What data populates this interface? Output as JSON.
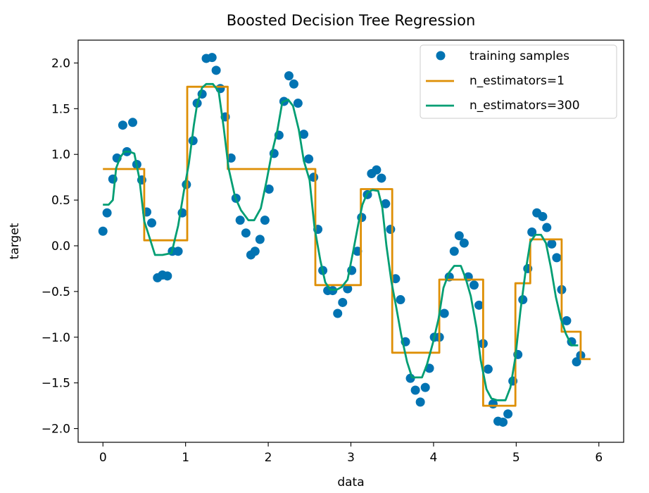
{
  "chart_data": {
    "type": "scatter",
    "title": "Boosted Decision Tree Regression",
    "xlabel": "data",
    "ylabel": "target",
    "xlim": [
      -0.3,
      6.3
    ],
    "ylim": [
      -2.15,
      2.25
    ],
    "xticks": [
      0,
      1,
      2,
      3,
      4,
      5,
      6
    ],
    "xtick_labels": [
      "0",
      "1",
      "2",
      "3",
      "4",
      "5",
      "6"
    ],
    "yticks": [
      -2.0,
      -1.5,
      -1.0,
      -0.5,
      0.0,
      0.5,
      1.0,
      1.5,
      2.0
    ],
    "ytick_labels": [
      "−2.0",
      "−1.5",
      "−1.0",
      "−0.5",
      "0.0",
      "0.5",
      "1.0",
      "1.5",
      "2.0"
    ],
    "grid": false,
    "legend_position": "top-right",
    "colors": {
      "samples": "#0173b2",
      "est1": "#de8f05",
      "est300": "#029e73"
    },
    "series": [
      {
        "name": "training samples",
        "kind": "scatter",
        "points": [
          [
            0.0,
            0.16
          ],
          [
            0.05,
            0.36
          ],
          [
            0.12,
            0.73
          ],
          [
            0.17,
            0.96
          ],
          [
            0.24,
            1.32
          ],
          [
            0.29,
            1.03
          ],
          [
            0.36,
            1.35
          ],
          [
            0.41,
            0.89
          ],
          [
            0.47,
            0.72
          ],
          [
            0.53,
            0.37
          ],
          [
            0.59,
            0.25
          ],
          [
            0.66,
            -0.35
          ],
          [
            0.72,
            -0.32
          ],
          [
            0.78,
            -0.33
          ],
          [
            0.84,
            -0.06
          ],
          [
            0.91,
            -0.06
          ],
          [
            0.96,
            0.36
          ],
          [
            1.01,
            0.67
          ],
          [
            1.09,
            1.15
          ],
          [
            1.14,
            1.56
          ],
          [
            1.2,
            1.66
          ],
          [
            1.25,
            2.05
          ],
          [
            1.32,
            2.06
          ],
          [
            1.37,
            1.92
          ],
          [
            1.42,
            1.72
          ],
          [
            1.48,
            1.41
          ],
          [
            1.55,
            0.96
          ],
          [
            1.61,
            0.52
          ],
          [
            1.66,
            0.28
          ],
          [
            1.73,
            0.14
          ],
          [
            1.79,
            -0.1
          ],
          [
            1.84,
            -0.06
          ],
          [
            1.9,
            0.07
          ],
          [
            1.96,
            0.28
          ],
          [
            2.01,
            0.62
          ],
          [
            2.07,
            1.01
          ],
          [
            2.13,
            1.21
          ],
          [
            2.19,
            1.58
          ],
          [
            2.25,
            1.86
          ],
          [
            2.31,
            1.77
          ],
          [
            2.36,
            1.56
          ],
          [
            2.43,
            1.22
          ],
          [
            2.49,
            0.95
          ],
          [
            2.55,
            0.75
          ],
          [
            2.6,
            0.18
          ],
          [
            2.66,
            -0.27
          ],
          [
            2.72,
            -0.49
          ],
          [
            2.78,
            -0.49
          ],
          [
            2.84,
            -0.74
          ],
          [
            2.9,
            -0.62
          ],
          [
            2.96,
            -0.47
          ],
          [
            3.01,
            -0.27
          ],
          [
            3.08,
            -0.06
          ],
          [
            3.13,
            0.31
          ],
          [
            3.2,
            0.56
          ],
          [
            3.25,
            0.79
          ],
          [
            3.31,
            0.83
          ],
          [
            3.37,
            0.74
          ],
          [
            3.42,
            0.46
          ],
          [
            3.48,
            0.18
          ],
          [
            3.54,
            -0.36
          ],
          [
            3.6,
            -0.59
          ],
          [
            3.66,
            -1.05
          ],
          [
            3.72,
            -1.45
          ],
          [
            3.78,
            -1.58
          ],
          [
            3.84,
            -1.71
          ],
          [
            3.9,
            -1.55
          ],
          [
            3.95,
            -1.34
          ],
          [
            4.01,
            -1.0
          ],
          [
            4.07,
            -1.0
          ],
          [
            4.13,
            -0.74
          ],
          [
            4.19,
            -0.34
          ],
          [
            4.25,
            -0.06
          ],
          [
            4.31,
            0.11
          ],
          [
            4.37,
            0.03
          ],
          [
            4.42,
            -0.34
          ],
          [
            4.49,
            -0.43
          ],
          [
            4.55,
            -0.65
          ],
          [
            4.6,
            -1.07
          ],
          [
            4.66,
            -1.35
          ],
          [
            4.72,
            -1.73
          ],
          [
            4.78,
            -1.92
          ],
          [
            4.84,
            -1.93
          ],
          [
            4.9,
            -1.84
          ],
          [
            4.96,
            -1.48
          ],
          [
            5.02,
            -1.19
          ],
          [
            5.08,
            -0.59
          ],
          [
            5.14,
            -0.25
          ],
          [
            5.19,
            0.15
          ],
          [
            5.25,
            0.36
          ],
          [
            5.32,
            0.32
          ],
          [
            5.37,
            0.2
          ],
          [
            5.43,
            0.02
          ],
          [
            5.49,
            -0.13
          ],
          [
            5.55,
            -0.48
          ],
          [
            5.61,
            -0.82
          ],
          [
            5.67,
            -1.05
          ],
          [
            5.73,
            -1.27
          ],
          [
            5.78,
            -1.2
          ]
        ]
      },
      {
        "name": "n_estimators=1",
        "kind": "step",
        "points": [
          [
            0.0,
            0.84
          ],
          [
            0.5,
            0.84
          ],
          [
            0.5,
            0.06
          ],
          [
            1.02,
            0.06
          ],
          [
            1.02,
            1.74
          ],
          [
            1.51,
            1.74
          ],
          [
            1.51,
            0.84
          ],
          [
            2.57,
            0.84
          ],
          [
            2.57,
            -0.43
          ],
          [
            3.12,
            -0.43
          ],
          [
            3.12,
            0.62
          ],
          [
            3.5,
            0.62
          ],
          [
            3.5,
            -1.17
          ],
          [
            4.07,
            -1.17
          ],
          [
            4.07,
            -0.37
          ],
          [
            4.6,
            -0.37
          ],
          [
            4.6,
            -1.75
          ],
          [
            4.99,
            -1.75
          ],
          [
            4.99,
            -0.41
          ],
          [
            5.17,
            -0.41
          ],
          [
            5.17,
            0.07
          ],
          [
            5.55,
            0.07
          ],
          [
            5.55,
            -0.94
          ],
          [
            5.78,
            -0.94
          ],
          [
            5.78,
            -1.24
          ],
          [
            5.9,
            -1.24
          ]
        ]
      },
      {
        "name": "n_estimators=300",
        "kind": "line",
        "points": [
          [
            0.0,
            0.45
          ],
          [
            0.07,
            0.45
          ],
          [
            0.12,
            0.5
          ],
          [
            0.16,
            0.85
          ],
          [
            0.21,
            0.97
          ],
          [
            0.26,
            1.03
          ],
          [
            0.32,
            1.03
          ],
          [
            0.38,
            1.01
          ],
          [
            0.44,
            0.74
          ],
          [
            0.5,
            0.27
          ],
          [
            0.56,
            0.1
          ],
          [
            0.63,
            -0.1
          ],
          [
            0.72,
            -0.1
          ],
          [
            0.83,
            -0.08
          ],
          [
            0.91,
            0.22
          ],
          [
            0.98,
            0.6
          ],
          [
            1.04,
            0.9
          ],
          [
            1.1,
            1.32
          ],
          [
            1.14,
            1.55
          ],
          [
            1.2,
            1.73
          ],
          [
            1.25,
            1.77
          ],
          [
            1.33,
            1.77
          ],
          [
            1.4,
            1.69
          ],
          [
            1.46,
            1.3
          ],
          [
            1.52,
            0.85
          ],
          [
            1.6,
            0.53
          ],
          [
            1.67,
            0.39
          ],
          [
            1.76,
            0.28
          ],
          [
            1.83,
            0.28
          ],
          [
            1.91,
            0.41
          ],
          [
            1.98,
            0.71
          ],
          [
            2.04,
            1.0
          ],
          [
            2.11,
            1.26
          ],
          [
            2.17,
            1.57
          ],
          [
            2.24,
            1.6
          ],
          [
            2.3,
            1.53
          ],
          [
            2.37,
            1.27
          ],
          [
            2.43,
            0.93
          ],
          [
            2.5,
            0.72
          ],
          [
            2.56,
            0.2
          ],
          [
            2.63,
            -0.16
          ],
          [
            2.69,
            -0.4
          ],
          [
            2.75,
            -0.48
          ],
          [
            2.83,
            -0.48
          ],
          [
            2.89,
            -0.45
          ],
          [
            2.96,
            -0.37
          ],
          [
            3.03,
            -0.05
          ],
          [
            3.09,
            0.24
          ],
          [
            3.14,
            0.45
          ],
          [
            3.2,
            0.58
          ],
          [
            3.26,
            0.61
          ],
          [
            3.33,
            0.6
          ],
          [
            3.38,
            0.42
          ],
          [
            3.43,
            0.0
          ],
          [
            3.49,
            -0.39
          ],
          [
            3.55,
            -0.68
          ],
          [
            3.61,
            -0.98
          ],
          [
            3.68,
            -1.27
          ],
          [
            3.74,
            -1.44
          ],
          [
            3.86,
            -1.44
          ],
          [
            3.92,
            -1.3
          ],
          [
            3.99,
            -1.07
          ],
          [
            4.06,
            -0.8
          ],
          [
            4.12,
            -0.46
          ],
          [
            4.19,
            -0.29
          ],
          [
            4.25,
            -0.22
          ],
          [
            4.33,
            -0.22
          ],
          [
            4.39,
            -0.36
          ],
          [
            4.45,
            -0.55
          ],
          [
            4.52,
            -0.9
          ],
          [
            4.57,
            -1.25
          ],
          [
            4.64,
            -1.57
          ],
          [
            4.7,
            -1.67
          ],
          [
            4.77,
            -1.69
          ],
          [
            4.87,
            -1.69
          ],
          [
            4.93,
            -1.55
          ],
          [
            4.99,
            -1.22
          ],
          [
            5.05,
            -0.72
          ],
          [
            5.11,
            -0.3
          ],
          [
            5.17,
            0.04
          ],
          [
            5.23,
            0.12
          ],
          [
            5.3,
            0.12
          ],
          [
            5.36,
            0.03
          ],
          [
            5.42,
            -0.24
          ],
          [
            5.48,
            -0.56
          ],
          [
            5.54,
            -0.8
          ],
          [
            5.6,
            -0.96
          ],
          [
            5.67,
            -1.09
          ],
          [
            5.75,
            -1.09
          ]
        ]
      }
    ]
  }
}
